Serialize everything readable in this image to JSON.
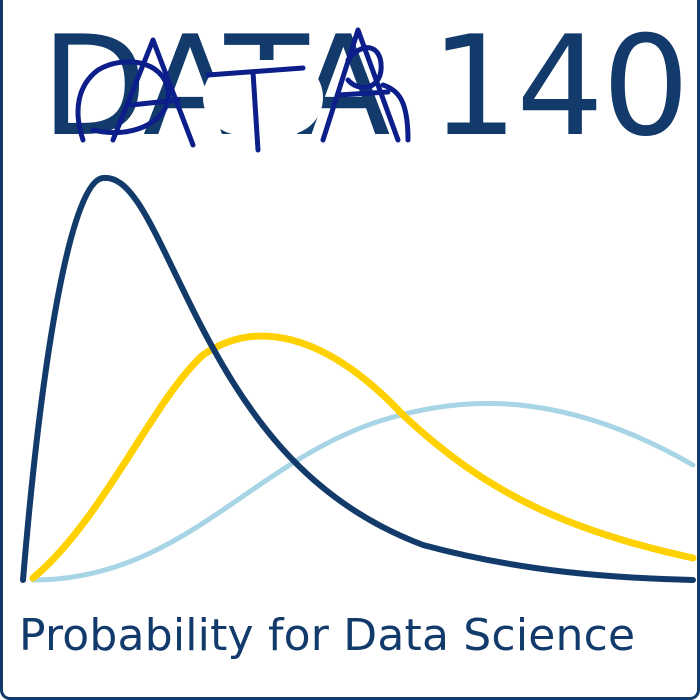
{
  "logo": {
    "course_title": "DATA 140",
    "subtitle": "Probability for Data Science"
  },
  "colors": {
    "navy": "#123a6b",
    "gold": "#ffd100",
    "light_blue": "#a8d5e5",
    "ink_overlay": "#0b1e8a",
    "background": "#ffffff"
  },
  "icons": {
    "distribution_curves": "three-probability-density-curves",
    "handwriting": "handwritten-DATA-overlay"
  }
}
